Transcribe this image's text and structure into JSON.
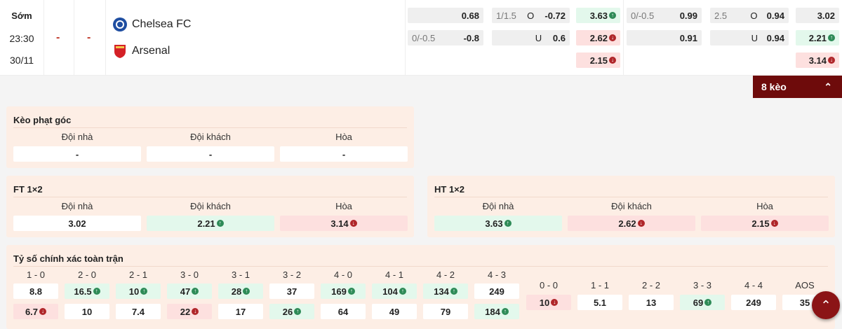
{
  "match": {
    "status": "Sớm",
    "time": "23:30",
    "date": "30/11",
    "score_ht": "-",
    "score_ft": "-",
    "home": "Chelsea FC",
    "away": "Arsenal"
  },
  "odds": {
    "hdp_ft": {
      "r1_line": "",
      "r1_val": "0.68",
      "r2_line": "0/-0.5",
      "r2_val": "-0.8"
    },
    "ou_ft": {
      "r1_line": "1/1.5",
      "r1_side": "O",
      "r1_val": "-0.72",
      "r2_side": "U",
      "r2_val": "0.6"
    },
    "x12_a": [
      {
        "v": "3.63",
        "t": "up"
      },
      {
        "v": "2.62",
        "t": "down"
      },
      {
        "v": "2.15",
        "t": "down"
      }
    ],
    "hdp_b": {
      "r1_line": "0/-0.5",
      "r1_val": "0.99",
      "r2_val": "0.91"
    },
    "ou_b": {
      "r1_line": "2.5",
      "r1_side": "O",
      "r1_val": "0.94",
      "r2_side": "U",
      "r2_val": "0.94"
    },
    "x12_b": [
      {
        "v": "3.02",
        "t": ""
      },
      {
        "v": "2.21",
        "t": "up"
      },
      {
        "v": "3.14",
        "t": "down"
      }
    ]
  },
  "more_button": "8 kèo",
  "corner": {
    "title": "Kèo phạt góc",
    "labels": [
      "Đội nhà",
      "Đội khách",
      "Hòa"
    ],
    "values": [
      "-",
      "-",
      "-"
    ]
  },
  "ft12": {
    "title": "FT 1×2",
    "labels": [
      "Đội nhà",
      "Đội khách",
      "Hòa"
    ],
    "values": [
      {
        "v": "3.02",
        "t": ""
      },
      {
        "v": "2.21",
        "t": "up"
      },
      {
        "v": "3.14",
        "t": "down"
      }
    ]
  },
  "ht12": {
    "title": "HT 1×2",
    "labels": [
      "Đội nhà",
      "Đội khách",
      "Hòa"
    ],
    "values": [
      {
        "v": "3.63",
        "t": "up"
      },
      {
        "v": "2.62",
        "t": "down"
      },
      {
        "v": "2.15",
        "t": "down"
      }
    ]
  },
  "correct_score": {
    "title": "Tỷ số chính xác toàn trận",
    "left": [
      {
        "s": "1 - 0",
        "h": {
          "v": "8.8",
          "t": ""
        },
        "a": {
          "v": "6.7",
          "t": "down"
        }
      },
      {
        "s": "2 - 0",
        "h": {
          "v": "16.5",
          "t": "up"
        },
        "a": {
          "v": "10",
          "t": ""
        }
      },
      {
        "s": "2 - 1",
        "h": {
          "v": "10",
          "t": "up"
        },
        "a": {
          "v": "7.4",
          "t": ""
        }
      },
      {
        "s": "3 - 0",
        "h": {
          "v": "47",
          "t": "up"
        },
        "a": {
          "v": "22",
          "t": "down"
        }
      },
      {
        "s": "3 - 1",
        "h": {
          "v": "28",
          "t": "up"
        },
        "a": {
          "v": "17",
          "t": ""
        }
      },
      {
        "s": "3 - 2",
        "h": {
          "v": "37",
          "t": ""
        },
        "a": {
          "v": "26",
          "t": "up"
        }
      },
      {
        "s": "4 - 0",
        "h": {
          "v": "169",
          "t": "up"
        },
        "a": {
          "v": "64",
          "t": ""
        }
      },
      {
        "s": "4 - 1",
        "h": {
          "v": "104",
          "t": "up"
        },
        "a": {
          "v": "49",
          "t": ""
        }
      },
      {
        "s": "4 - 2",
        "h": {
          "v": "134",
          "t": "up"
        },
        "a": {
          "v": "79",
          "t": ""
        }
      },
      {
        "s": "4 - 3",
        "h": {
          "v": "249",
          "t": ""
        },
        "a": {
          "v": "184",
          "t": "up"
        }
      }
    ],
    "draws": [
      {
        "s": "0 - 0",
        "v": "10",
        "t": "down"
      },
      {
        "s": "1 - 1",
        "v": "5.1",
        "t": ""
      },
      {
        "s": "2 - 2",
        "v": "13",
        "t": ""
      },
      {
        "s": "3 - 3",
        "v": "69",
        "t": "up"
      },
      {
        "s": "4 - 4",
        "v": "249",
        "t": ""
      },
      {
        "s": "AOS",
        "v": "35",
        "t": ""
      }
    ]
  },
  "colors": {
    "up": "#2e8b57",
    "down": "#b0262a",
    "brand": "#6e0b0b",
    "panel": "#fdeee5"
  }
}
